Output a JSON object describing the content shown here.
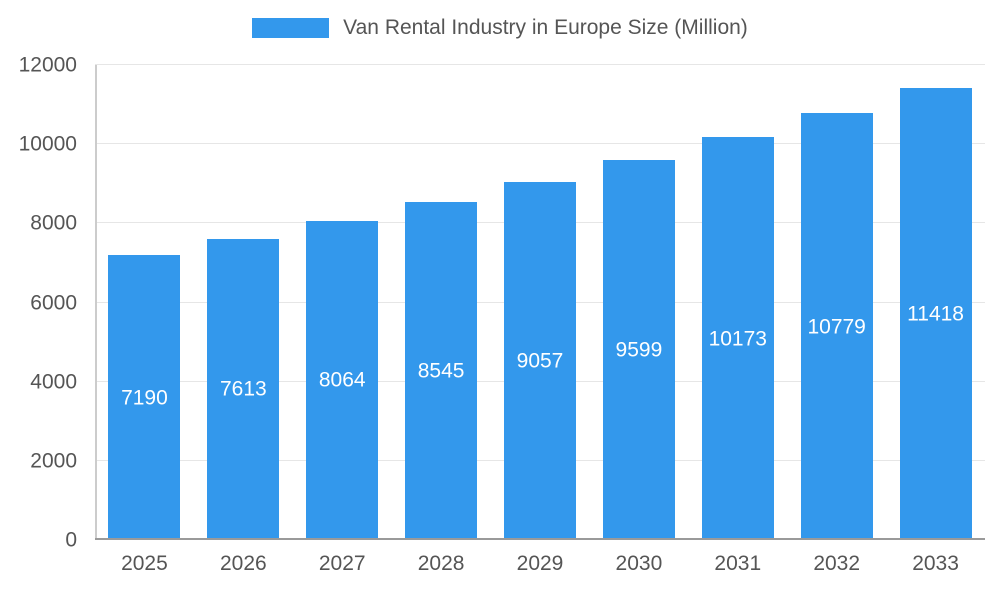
{
  "chart_data": {
    "type": "bar",
    "title": "Van Rental Industry in Europe Size (Million)",
    "legend_position": "top",
    "categories": [
      "2025",
      "2026",
      "2027",
      "2028",
      "2029",
      "2030",
      "2031",
      "2032",
      "2033"
    ],
    "values": [
      7190,
      7613,
      8064,
      8545,
      9057,
      9599,
      10173,
      10779,
      11418
    ],
    "xlabel": "",
    "ylabel": "",
    "ylim": [
      0,
      12000
    ],
    "yticks": [
      0,
      2000,
      4000,
      6000,
      8000,
      10000,
      12000
    ],
    "grid": true,
    "bar_label_position": "inside-center",
    "colors": {
      "bar": "#3398EC",
      "bar_label_text": "#ffffff",
      "axis_text": "#555555",
      "gridline": "#e6e6e6",
      "baseline": "#9a9a9a",
      "axis_line": "#cccccc",
      "background": "#ffffff"
    }
  }
}
